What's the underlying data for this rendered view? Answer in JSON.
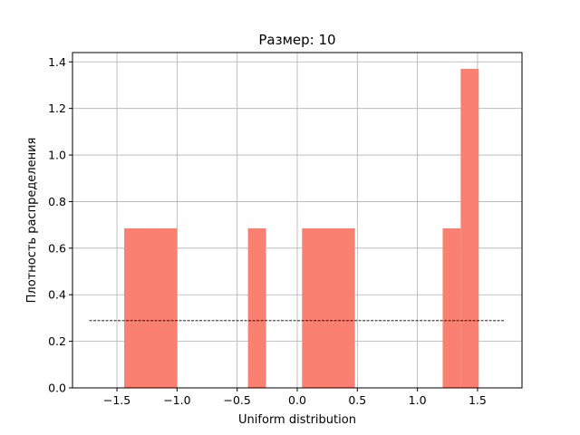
{
  "chart_data": {
    "type": "bar",
    "title": "Размер: 10",
    "xlabel": "Uniform distribution",
    "ylabel": "Плотность распределения",
    "xlim": [
      -1.87,
      1.87
    ],
    "ylim": [
      0,
      1.44
    ],
    "xticks": [
      -1.5,
      -1.0,
      -0.5,
      0.0,
      0.5,
      1.0,
      1.5
    ],
    "xtick_labels": [
      "−1.5",
      "−1.0",
      "−0.5",
      "0.0",
      "0.5",
      "1.0",
      "1.5"
    ],
    "yticks": [
      0.0,
      0.2,
      0.4,
      0.6,
      0.8,
      1.0,
      1.2,
      1.4
    ],
    "ytick_labels": [
      "0.0",
      "0.2",
      "0.4",
      "0.6",
      "0.8",
      "1.0",
      "1.2",
      "1.4"
    ],
    "grid": true,
    "bar_color": "#fa8072",
    "bins": [
      {
        "x0": -1.44,
        "x1": -1.0,
        "y": 0.685
      },
      {
        "x0": -0.41,
        "x1": -0.26,
        "y": 0.685
      },
      {
        "x0": 0.04,
        "x1": 0.48,
        "y": 0.685
      },
      {
        "x0": 1.21,
        "x1": 1.36,
        "y": 0.685
      },
      {
        "x0": 1.36,
        "x1": 1.51,
        "y": 1.37
      }
    ],
    "density_line": {
      "x0": -1.73,
      "x1": 1.73,
      "y": 0.2887,
      "color": "#000000",
      "style": "dashed"
    }
  }
}
